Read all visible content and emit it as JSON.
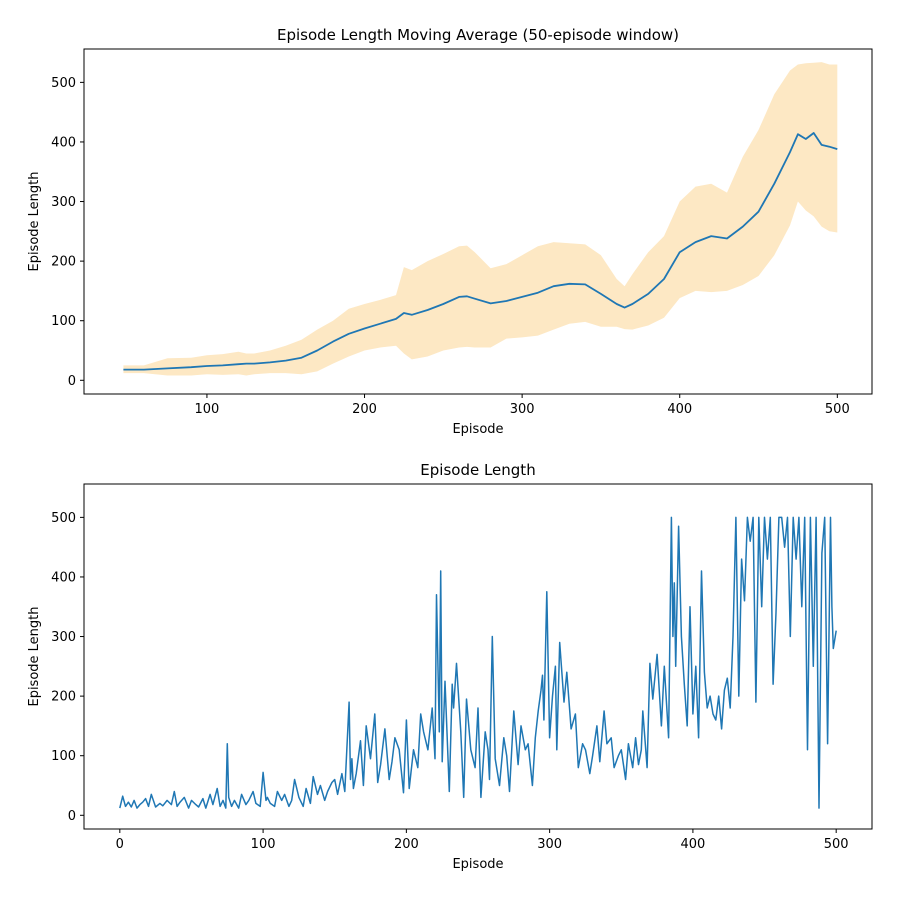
{
  "chart_data": [
    {
      "type": "line",
      "title": "Episode Length Moving Average (50-episode window)",
      "xlabel": "Episode",
      "ylabel": "Episode Length",
      "xlim": [
        22,
        522
      ],
      "ylim": [
        -23,
        556
      ],
      "xticks": [
        100,
        200,
        300,
        400,
        500
      ],
      "yticks": [
        0,
        100,
        200,
        300,
        400,
        500
      ],
      "grid": false,
      "series": [
        {
          "kind": "line",
          "color": "#1f77b4",
          "x": [
            47,
            60,
            75,
            90,
            100,
            110,
            120,
            125,
            130,
            140,
            150,
            160,
            170,
            180,
            190,
            200,
            210,
            220,
            225,
            230,
            240,
            250,
            260,
            265,
            270,
            280,
            290,
            300,
            310,
            320,
            330,
            340,
            350,
            360,
            365,
            370,
            380,
            390,
            400,
            410,
            420,
            430,
            440,
            450,
            460,
            470,
            475,
            480,
            485,
            490,
            495,
            500
          ],
          "y": [
            18,
            18,
            20,
            22,
            24,
            25,
            27,
            28,
            28,
            30,
            33,
            38,
            50,
            65,
            78,
            87,
            95,
            103,
            113,
            110,
            118,
            128,
            140,
            141,
            137,
            129,
            133,
            140,
            147,
            158,
            162,
            161,
            145,
            128,
            122,
            128,
            145,
            170,
            215,
            232,
            242,
            238,
            258,
            283,
            330,
            383,
            413,
            405,
            415,
            395,
            392,
            388
          ]
        },
        {
          "kind": "band",
          "color": "#fde8c4",
          "x": [
            47,
            60,
            75,
            90,
            100,
            110,
            120,
            125,
            130,
            140,
            150,
            160,
            170,
            180,
            190,
            200,
            210,
            220,
            225,
            230,
            240,
            250,
            260,
            265,
            270,
            280,
            290,
            300,
            310,
            320,
            330,
            340,
            350,
            360,
            365,
            370,
            380,
            390,
            400,
            410,
            420,
            430,
            440,
            450,
            460,
            470,
            475,
            480,
            485,
            490,
            495,
            500
          ],
          "upper": [
            25,
            25,
            37,
            38,
            42,
            44,
            48,
            45,
            45,
            50,
            58,
            68,
            85,
            100,
            120,
            128,
            135,
            143,
            190,
            185,
            200,
            212,
            225,
            226,
            215,
            188,
            195,
            210,
            225,
            232,
            230,
            228,
            210,
            170,
            158,
            178,
            215,
            242,
            300,
            325,
            330,
            315,
            375,
            420,
            480,
            520,
            530,
            532,
            533,
            534,
            530,
            530
          ],
          "lower": [
            12,
            12,
            8,
            8,
            10,
            9,
            10,
            8,
            10,
            12,
            12,
            10,
            15,
            28,
            40,
            50,
            55,
            58,
            45,
            35,
            40,
            50,
            55,
            56,
            55,
            55,
            70,
            72,
            75,
            85,
            95,
            98,
            90,
            90,
            86,
            85,
            92,
            105,
            138,
            150,
            148,
            150,
            160,
            175,
            210,
            260,
            300,
            285,
            275,
            258,
            250,
            248
          ]
        }
      ]
    },
    {
      "type": "line",
      "title": "Episode Length",
      "xlabel": "Episode",
      "ylabel": "Episode Length",
      "xlim": [
        -25,
        525
      ],
      "ylim": [
        -23,
        556
      ],
      "xticks": [
        0,
        100,
        200,
        300,
        400,
        500
      ],
      "yticks": [
        0,
        100,
        200,
        300,
        400,
        500
      ],
      "grid": false,
      "series": [
        {
          "kind": "line",
          "color": "#1f77b4",
          "x": [
            0,
            2,
            4,
            6,
            8,
            10,
            12,
            14,
            16,
            18,
            20,
            22,
            25,
            28,
            30,
            33,
            36,
            38,
            40,
            42,
            45,
            48,
            50,
            53,
            55,
            58,
            60,
            63,
            65,
            68,
            70,
            72,
            74,
            75,
            76,
            78,
            80,
            83,
            85,
            88,
            90,
            93,
            95,
            98,
            100,
            102,
            103,
            105,
            108,
            110,
            113,
            115,
            118,
            120,
            122,
            125,
            128,
            130,
            133,
            135,
            138,
            140,
            143,
            145,
            148,
            150,
            152,
            155,
            157,
            160,
            161,
            162,
            163,
            165,
            168,
            170,
            172,
            175,
            178,
            180,
            182,
            185,
            188,
            190,
            192,
            195,
            198,
            200,
            202,
            205,
            208,
            210,
            212,
            215,
            218,
            220,
            221,
            223,
            224,
            225,
            227,
            230,
            232,
            233,
            235,
            238,
            240,
            242,
            245,
            248,
            250,
            252,
            255,
            257,
            258,
            260,
            262,
            265,
            268,
            270,
            272,
            275,
            278,
            280,
            283,
            285,
            288,
            290,
            292,
            294,
            295,
            296,
            298,
            300,
            302,
            304,
            305,
            307,
            310,
            312,
            315,
            318,
            320,
            323,
            325,
            328,
            330,
            333,
            335,
            338,
            340,
            343,
            345,
            348,
            350,
            353,
            355,
            358,
            360,
            362,
            364,
            365,
            368,
            370,
            372,
            375,
            378,
            380,
            383,
            385,
            386,
            387,
            388,
            390,
            392,
            394,
            396,
            398,
            400,
            402,
            404,
            406,
            408,
            410,
            412,
            414,
            416,
            418,
            420,
            422,
            424,
            426,
            428,
            430,
            432,
            434,
            436,
            438,
            440,
            442,
            444,
            446,
            448,
            450,
            452,
            454,
            456,
            458,
            460,
            462,
            464,
            466,
            468,
            470,
            472,
            474,
            476,
            478,
            480,
            482,
            484,
            486,
            488,
            490,
            492,
            494,
            496,
            497,
            498,
            500
          ],
          "y": [
            12,
            32,
            15,
            22,
            14,
            25,
            12,
            18,
            22,
            28,
            15,
            35,
            14,
            20,
            16,
            25,
            18,
            40,
            15,
            22,
            30,
            12,
            25,
            18,
            14,
            28,
            12,
            35,
            18,
            45,
            15,
            25,
            12,
            120,
            30,
            15,
            25,
            12,
            35,
            18,
            25,
            40,
            20,
            15,
            72,
            25,
            30,
            20,
            15,
            40,
            25,
            35,
            15,
            25,
            60,
            30,
            15,
            45,
            20,
            65,
            35,
            50,
            25,
            40,
            55,
            60,
            35,
            70,
            40,
            190,
            60,
            95,
            45,
            70,
            125,
            50,
            150,
            95,
            170,
            55,
            85,
            145,
            60,
            90,
            130,
            110,
            38,
            160,
            45,
            110,
            80,
            170,
            140,
            110,
            180,
            95,
            370,
            140,
            410,
            90,
            225,
            40,
            220,
            180,
            255,
            140,
            30,
            195,
            110,
            80,
            180,
            30,
            140,
            110,
            60,
            300,
            95,
            50,
            130,
            100,
            40,
            175,
            85,
            150,
            110,
            120,
            50,
            130,
            175,
            210,
            235,
            160,
            375,
            130,
            200,
            250,
            110,
            290,
            190,
            240,
            145,
            170,
            80,
            120,
            110,
            70,
            100,
            150,
            90,
            175,
            120,
            130,
            80,
            100,
            110,
            60,
            120,
            80,
            130,
            85,
            110,
            175,
            80,
            255,
            195,
            270,
            150,
            250,
            130,
            500,
            300,
            390,
            250,
            485,
            300,
            220,
            150,
            350,
            170,
            250,
            130,
            410,
            240,
            180,
            200,
            170,
            160,
            200,
            145,
            210,
            230,
            180,
            300,
            500,
            200,
            430,
            360,
            500,
            460,
            500,
            190,
            500,
            350,
            500,
            430,
            500,
            220,
            340,
            500,
            500,
            450,
            500,
            300,
            500,
            430,
            500,
            350,
            500,
            110,
            500,
            250,
            500,
            12,
            440,
            500,
            120,
            500,
            350,
            280,
            310
          ]
        }
      ]
    }
  ]
}
